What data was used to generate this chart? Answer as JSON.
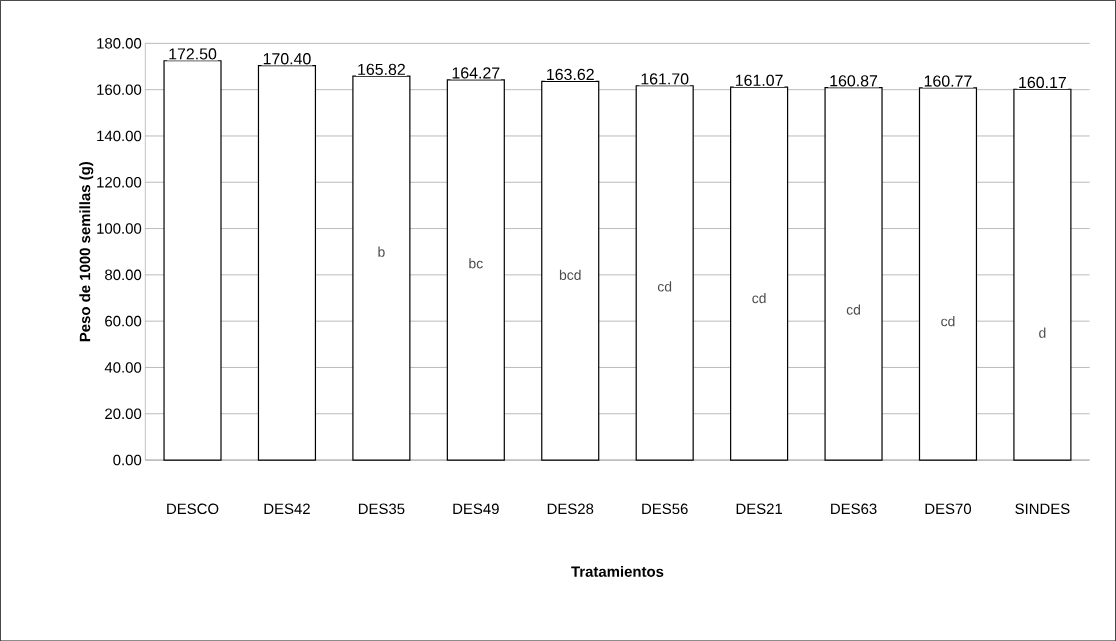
{
  "chart_data": {
    "type": "bar",
    "xlabel": "Tratamientos",
    "ylabel": "Peso de 1000 semillas (g)",
    "categories": [
      "DESCO",
      "DES42",
      "DES35",
      "DES49",
      "DES28",
      "DES56",
      "DES21",
      "DES63",
      "DES70",
      "SINDES"
    ],
    "values": [
      172.5,
      170.4,
      165.82,
      164.27,
      163.62,
      161.7,
      161.07,
      160.87,
      160.77,
      160.17
    ],
    "value_labels": [
      "172.50",
      "170.40",
      "165.82",
      "164.27",
      "163.62",
      "161.70",
      "161.07",
      "160.87",
      "160.77",
      "160.17"
    ],
    "color": "#ffffff",
    "ylim": [
      0,
      180
    ],
    "yticks": [
      {
        "value": 0,
        "label": "0.00"
      },
      {
        "value": 20,
        "label": "20.00"
      },
      {
        "value": 40,
        "label": "40.00"
      },
      {
        "value": 60,
        "label": "60.00"
      },
      {
        "value": 80,
        "label": "80.00"
      },
      {
        "value": 100,
        "label": "100.00"
      },
      {
        "value": 120,
        "label": "120.00"
      },
      {
        "value": 140,
        "label": "140.00"
      },
      {
        "value": 160,
        "label": "160.00"
      },
      {
        "value": 180,
        "label": "180.00"
      }
    ],
    "annotations": [
      "b",
      "bc",
      "bcd",
      "cd",
      "cd",
      "cd",
      "cd",
      "d"
    ],
    "grid": "y"
  }
}
